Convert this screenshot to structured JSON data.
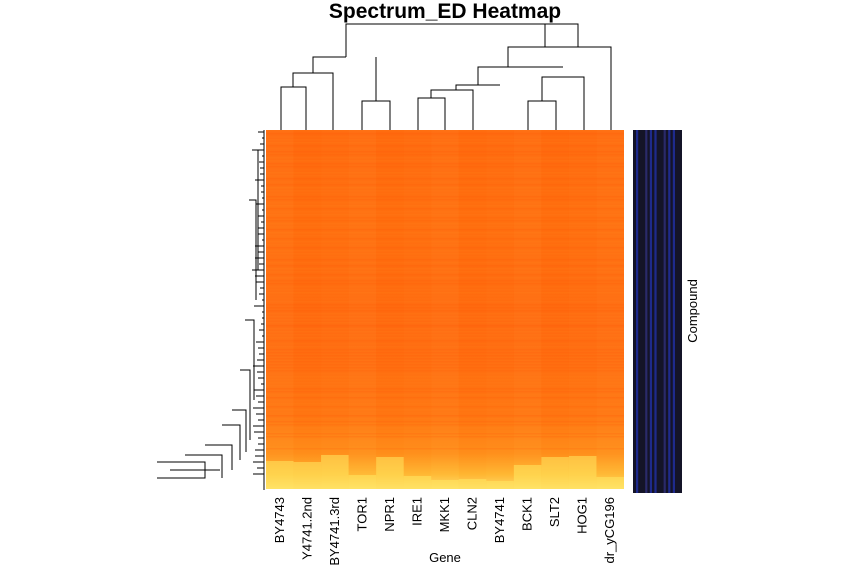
{
  "chart_data": {
    "type": "heatmap",
    "title": "Spectrum_ED Heatmap",
    "xlabel": "Gene",
    "ylabel": "Compound",
    "columns": [
      "BY4743",
      "BY4741.2nd",
      "BY4741.3rd",
      "TOR1",
      "NPR1",
      "IRE1",
      "MKK1",
      "CLN2",
      "BY4741",
      "BCK1",
      "SLT2",
      "HOG1",
      "dr_yCG196"
    ],
    "column_labels_as_printed": [
      "BY4743",
      "Y4741.2nd",
      "BY4741.3rd",
      "TOR1",
      "NPR1",
      "IRE1",
      "MKK1",
      "CLN2",
      "BY4741",
      "BCK1",
      "SLT2",
      "HOG1",
      "dr_yCG196"
    ],
    "color_scale": "heat (red-orange to light yellow)",
    "colors": {
      "high": "#ff6a10",
      "mid": "#ff8c00",
      "low": "#ffff8a",
      "side_bar": "#1e2a8c",
      "side_bar_dark": "#141428",
      "dendrogram": "#000000"
    },
    "row_dendrogram": true,
    "column_dendrogram": true,
    "column_side_colors": true
  }
}
